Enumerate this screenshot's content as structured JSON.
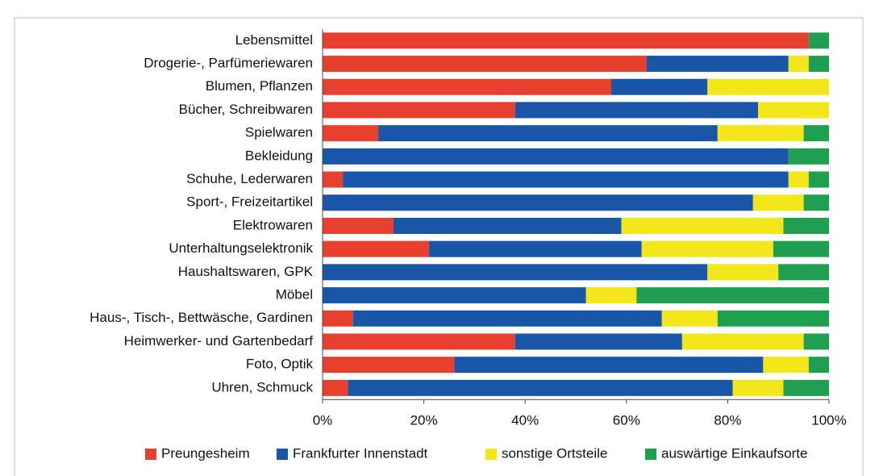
{
  "chart_data": {
    "type": "stacked_barh",
    "categories": [
      "Lebensmittel",
      "Drogerie-, Parfümeriewaren",
      "Blumen, Pflanzen",
      "Bücher, Schreibwaren",
      "Spielwaren",
      "Bekleidung",
      "Schuhe, Lederwaren",
      "Sport-, Freizeitartikel",
      "Elektrowaren",
      "Unterhaltungselektronik",
      "Haushaltswaren, GPK",
      "Möbel",
      "Haus-, Tisch-, Bettwäsche, Gardinen",
      "Heimwerker- und Gartenbedarf",
      "Foto, Optik",
      "Uhren, Schmuck"
    ],
    "series": [
      {
        "name": "Preungesheim",
        "color": "#e8402f",
        "values": [
          96,
          64,
          57,
          38,
          11,
          0,
          4,
          0,
          14,
          21,
          0,
          0,
          6,
          38,
          26,
          5
        ]
      },
      {
        "name": "Frankfurter Innenstadt",
        "color": "#1a56a8",
        "values": [
          0,
          28,
          19,
          48,
          67,
          92,
          88,
          85,
          45,
          42,
          76,
          52,
          61,
          33,
          61,
          76
        ]
      },
      {
        "name": "sonstige Ortsteile",
        "color": "#f3e61a",
        "values": [
          0,
          4,
          24,
          14,
          17,
          0,
          4,
          10,
          32,
          26,
          14,
          10,
          11,
          24,
          9,
          10
        ]
      },
      {
        "name": "auswärtige Einkaufsorte",
        "color": "#1fa050",
        "values": [
          4,
          4,
          0,
          0,
          5,
          8,
          4,
          5,
          9,
          11,
          10,
          38,
          22,
          5,
          4,
          9
        ]
      }
    ],
    "xlim": [
      0,
      100
    ],
    "xticks": [
      {
        "value": 0,
        "label": "0%"
      },
      {
        "value": 20,
        "label": "20%"
      },
      {
        "value": 40,
        "label": "40%"
      },
      {
        "value": 60,
        "label": "60%"
      },
      {
        "value": 80,
        "label": "80%"
      },
      {
        "value": 100,
        "label": "100%"
      }
    ],
    "legend": "bottom"
  }
}
